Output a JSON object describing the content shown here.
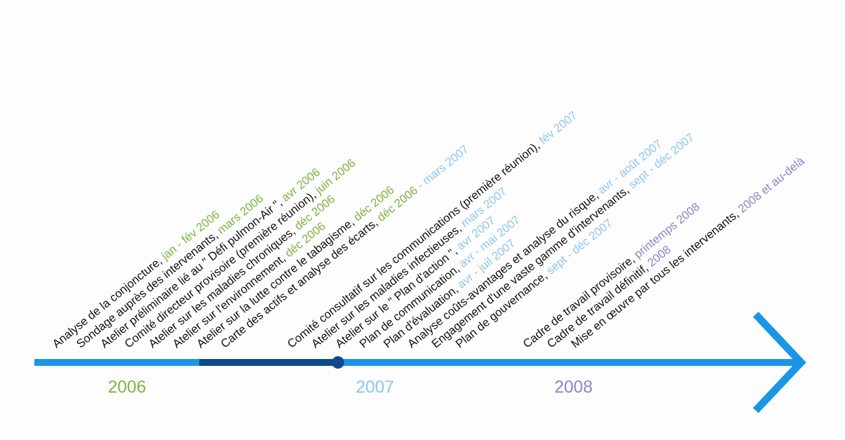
{
  "colors": {
    "y2006": "#7cb342",
    "y2007": "#8ec6ee",
    "y2008": "#8e84c3",
    "line": "#1b95e6",
    "line_dark": "#0d4a8c",
    "text": "#111111"
  },
  "years": [
    {
      "label": "2006",
      "color": "#7cb342"
    },
    {
      "label": "2007",
      "color": "#8ec6ee"
    },
    {
      "label": "2008",
      "color": "#8e84c3"
    }
  ],
  "events": [
    {
      "text": "Analyse de la conjoncture, ",
      "date": "jan - fév 2006",
      "color": "#7cb342"
    },
    {
      "text": "Sondage auprès des intervenants, ",
      "date": "mars 2006",
      "color": "#7cb342"
    },
    {
      "text": "Atelier préliminaire lié au \" Défi pulmon-Air \", ",
      "date": "avr 2006",
      "color": "#7cb342"
    },
    {
      "text": "Comité directeur provisoire (première réunion), ",
      "date": "juin 2006",
      "color": "#7cb342"
    },
    {
      "text": "Atelier sur les maladies chroniques, ",
      "date": "déc 2006",
      "color": "#7cb342"
    },
    {
      "text": "Atelier sur l'environnement, ",
      "date": "déc 2006",
      "color": "#7cb342"
    },
    {
      "text": "Atelier sur la lutte contre le tabagisme, ",
      "date": "déc 2006",
      "color": "#7cb342"
    },
    {
      "text": "Carte des actifs et analyse des écarts, ",
      "date": "déc 2006",
      "date2": " - mars 2007",
      "color": "#7cb342",
      "color2": "#8ec6ee"
    },
    {
      "text": "Comité consultatif sur les communications (première réunion), ",
      "date": "fév 2007",
      "color": "#8ec6ee"
    },
    {
      "text": "Atelier sur les maladies infectieuses, ",
      "date": "mars 2007",
      "color": "#8ec6ee"
    },
    {
      "text": "Atelier sur le \" Plan d'action \", ",
      "date": "avr 2007",
      "color": "#8ec6ee"
    },
    {
      "text": "Plan de communication, ",
      "date": "avr - mai 2007",
      "color": "#8ec6ee"
    },
    {
      "text": "Plan d'évaluation, ",
      "date": "avr - juil 2007",
      "color": "#8ec6ee"
    },
    {
      "text": "Analyse coûts-avantages et analyse du risque, ",
      "date": "avr - août 2007",
      "color": "#8ec6ee"
    },
    {
      "text": "Engagement d'une vaste gamme d'intervenants, ",
      "date": "sept - déc 2007",
      "color": "#8ec6ee"
    },
    {
      "text": "Plan de gouvernance, ",
      "date": "sept - déc 2007",
      "color": "#8ec6ee"
    },
    {
      "text": "Cadre de travail provisoire, ",
      "date": "printemps 2008",
      "color": "#8e84c3"
    },
    {
      "text": "Cadre de travail définitif, ",
      "date": "2008",
      "color": "#8e84c3"
    },
    {
      "text": "Mise en œuvre par tous les intervenants, ",
      "date": "2008 et au-delà",
      "color": "#8e84c3"
    }
  ]
}
